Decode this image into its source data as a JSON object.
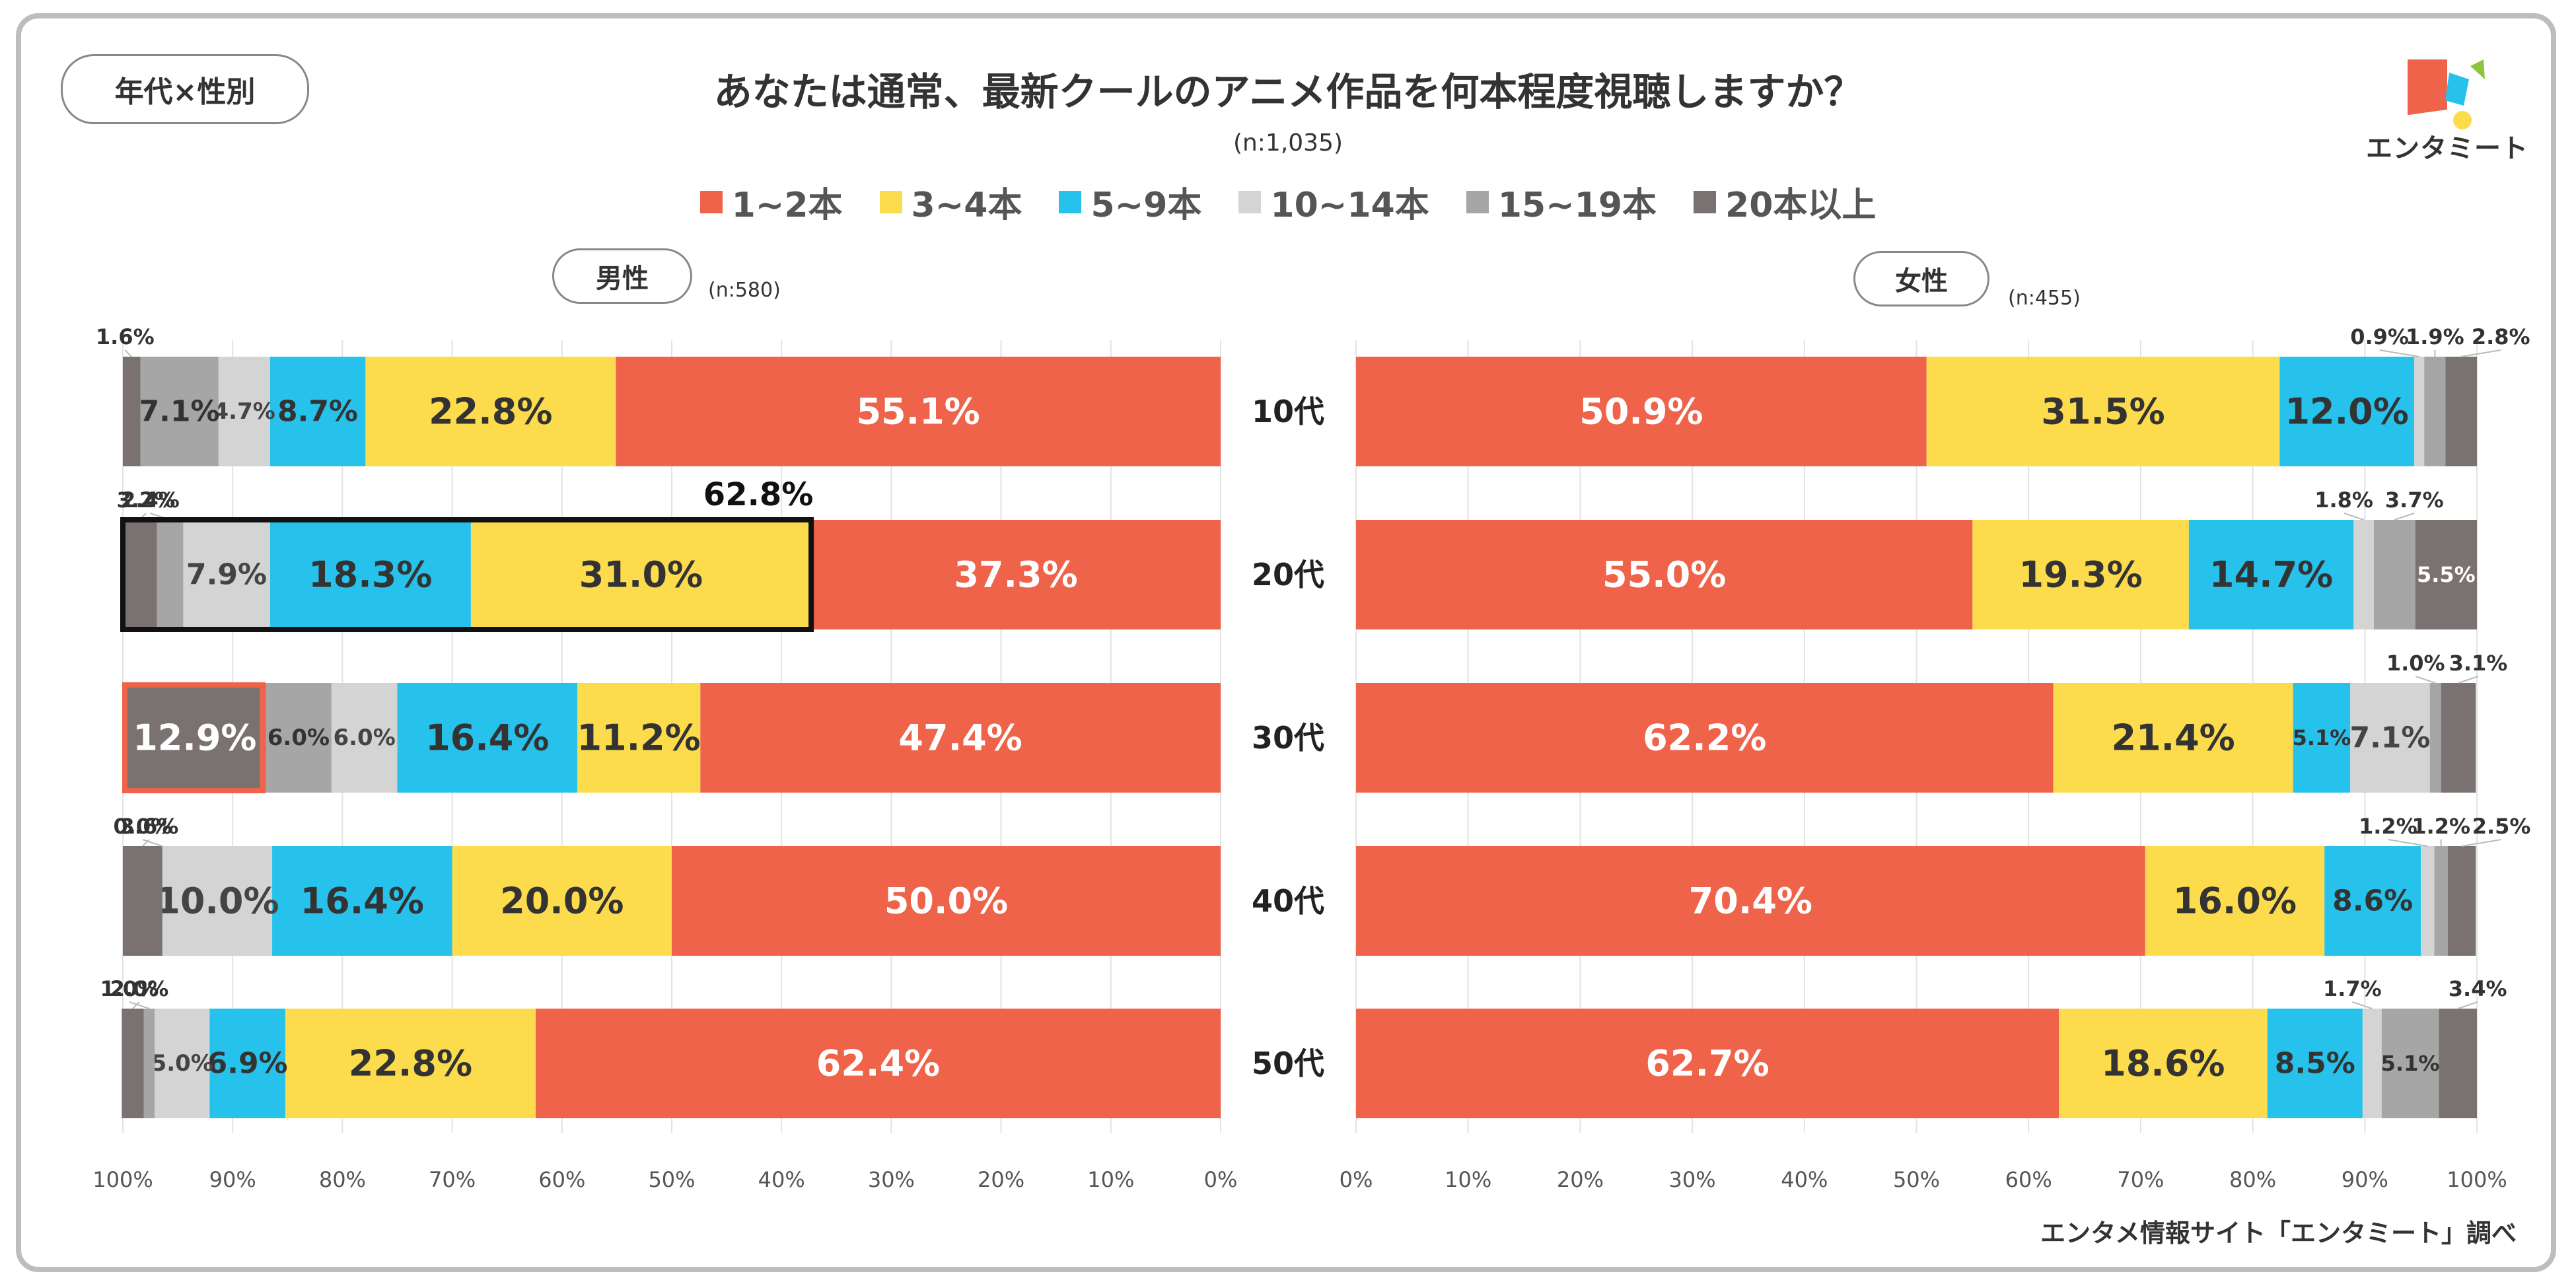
{
  "header": {
    "tag": "年代×性別",
    "title": "あなたは通常、最新クールのアニメ作品を何本程度視聴しますか？",
    "sample": "(n:1,035)",
    "logo_text": "エンタミート",
    "source": "エンタメ情報サイト「エンタミート」調べ"
  },
  "legend": [
    {
      "label": "1~2本",
      "color": "#EE634A"
    },
    {
      "label": "3~4本",
      "color": "#FCDC4D"
    },
    {
      "label": "5~9本",
      "color": "#27C2EB"
    },
    {
      "label": "10~14本",
      "color": "#D4D4D4"
    },
    {
      "label": "15~19本",
      "color": "#A6A6A6"
    },
    {
      "label": "20本以上",
      "color": "#7A7171"
    }
  ],
  "panels": {
    "male": {
      "label": "男性",
      "n": "(n:580)"
    },
    "female": {
      "label": "女性",
      "n": "(n:455)"
    }
  },
  "chart_data": {
    "type": "bar",
    "orientation": "horizontal-stacked-100",
    "title": "あなたは通常、最新クールのアニメ作品を何本程度視聴しますか？",
    "categories": [
      "10代",
      "20代",
      "30代",
      "40代",
      "50代"
    ],
    "series_names": [
      "1~2本",
      "3~4本",
      "5~9本",
      "10~14本",
      "15~19本",
      "20本以上"
    ],
    "colors": [
      "#EE634A",
      "#FCDC4D",
      "#27C2EB",
      "#D4D4D4",
      "#A6A6A6",
      "#7A7171"
    ],
    "male": [
      [
        55.1,
        22.8,
        8.7,
        4.7,
        7.1,
        1.6
      ],
      [
        37.3,
        31.0,
        18.3,
        7.9,
        2.4,
        3.2
      ],
      [
        47.4,
        11.2,
        16.4,
        6.0,
        6.0,
        12.9
      ],
      [
        50.0,
        20.0,
        16.4,
        10.0,
        0.0,
        3.6
      ],
      [
        62.4,
        22.8,
        6.9,
        5.0,
        1.0,
        2.0
      ]
    ],
    "female": [
      [
        50.9,
        31.5,
        12.0,
        0.9,
        1.9,
        2.8
      ],
      [
        55.0,
        19.3,
        14.7,
        1.8,
        3.7,
        5.5
      ],
      [
        62.2,
        21.4,
        5.1,
        7.1,
        1.0,
        3.1
      ],
      [
        70.4,
        16.0,
        8.6,
        1.2,
        1.2,
        2.5
      ],
      [
        62.7,
        18.6,
        8.5,
        1.7,
        5.1,
        3.4
      ]
    ],
    "male_labels": [
      [
        "55.1%",
        "22.8%",
        "8.7%",
        "4.7%",
        "7.1%",
        "1.6%"
      ],
      [
        "37.3%",
        "31.0%",
        "18.3%",
        "7.9%",
        "2.4%",
        "3.2%"
      ],
      [
        "47.4%",
        "11.2%",
        "16.4%",
        "6.0%",
        "6.0%",
        "12.9%"
      ],
      [
        "50.0%",
        "20.0%",
        "16.4%",
        "10.0%",
        "0.0%",
        "3.6%"
      ],
      [
        "62.4%",
        "22.8%",
        "6.9%",
        "5.0%",
        "1.0%",
        "2.0%"
      ]
    ],
    "female_labels": [
      [
        "50.9%",
        "31.5%",
        "12.0%",
        "0.9%",
        "1.9%",
        "2.8%"
      ],
      [
        "55.0%",
        "19.3%",
        "14.7%",
        "1.8%",
        "3.7%",
        "5.5%"
      ],
      [
        "62.2%",
        "21.4%",
        "5.1%",
        "7.1%",
        "1.0%",
        "3.1%"
      ],
      [
        "70.4%",
        "16.0%",
        "8.6%",
        "1.2%",
        "1.2%",
        "2.5%"
      ],
      [
        "62.7%",
        "18.6%",
        "8.5%",
        "1.7%",
        "5.1%",
        "3.4%"
      ]
    ],
    "male_xticks": [
      "100%",
      "90%",
      "80%",
      "70%",
      "60%",
      "50%",
      "40%",
      "30%",
      "20%",
      "10%",
      "0%"
    ],
    "female_xticks": [
      "0%",
      "10%",
      "20%",
      "30%",
      "40%",
      "50%",
      "60%",
      "70%",
      "80%",
      "90%",
      "100%"
    ],
    "highlights": [
      {
        "panel": "male",
        "row": "20代",
        "segments": "1~2本 excluded (3~4本 and above)",
        "label": "62.8%"
      },
      {
        "panel": "male",
        "row": "30代",
        "segment": "20本以上"
      }
    ]
  }
}
